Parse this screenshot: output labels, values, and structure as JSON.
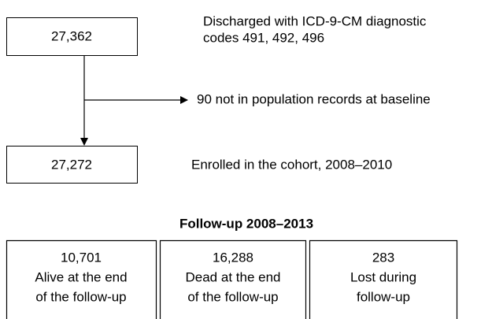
{
  "steps": [
    {
      "count": "27,362",
      "description": [
        "Discharged with ICD-9-CM diagnostic",
        "codes 491, 492, 496"
      ]
    },
    {
      "count": "27,272",
      "description": [
        "Enrolled in the cohort, 2008–2010"
      ]
    }
  ],
  "exclusion": "90 not in population records at baseline",
  "follow_up": {
    "title": "Follow-up 2008–2013",
    "outcomes": [
      {
        "count": "10,701",
        "lines": [
          "Alive at the end",
          "of the follow-up"
        ]
      },
      {
        "count": "16,288",
        "lines": [
          "Dead at the end",
          "of the follow-up"
        ]
      },
      {
        "count": "283",
        "lines": [
          "Lost during",
          "follow-up"
        ]
      }
    ]
  }
}
